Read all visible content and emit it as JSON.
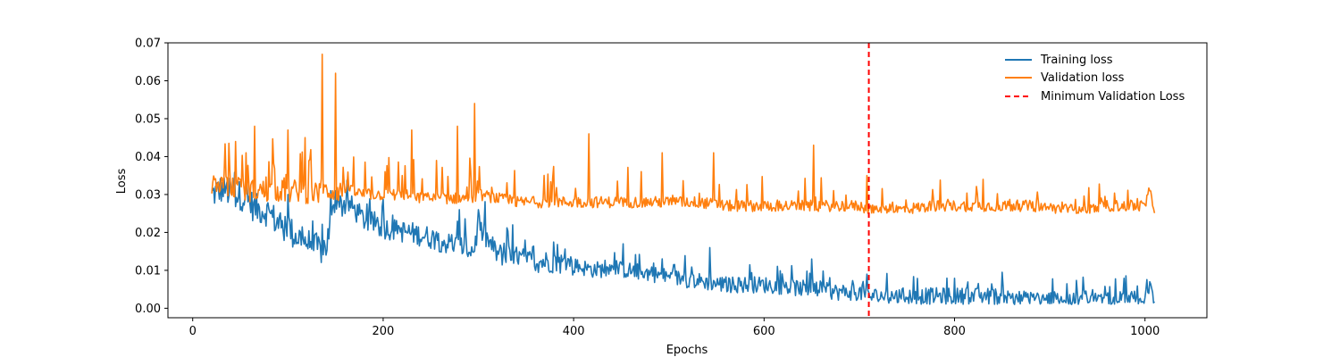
{
  "chart_data": {
    "type": "line",
    "title": "",
    "xlabel": "Epochs",
    "ylabel": "Loss",
    "xlim": [
      -26,
      1065
    ],
    "ylim": [
      -0.0025,
      0.07
    ],
    "xticks": [
      0,
      200,
      400,
      600,
      800,
      1000
    ],
    "yticks": [
      0.0,
      0.01,
      0.02,
      0.03,
      0.04,
      0.05,
      0.06,
      0.07
    ],
    "xtick_labels": [
      "0",
      "200",
      "400",
      "600",
      "800",
      "1000"
    ],
    "ytick_labels": [
      "0.00",
      "0.01",
      "0.02",
      "0.03",
      "0.04",
      "0.05",
      "0.06",
      "0.07"
    ],
    "grid": false,
    "legend_position": "top-right",
    "series": [
      {
        "name": "Training loss",
        "color": "#1f77b4",
        "x": [
          20,
          30,
          40,
          55,
          65,
          80,
          95,
          100,
          105,
          115,
          125,
          135,
          140,
          150,
          165,
          180,
          200,
          220,
          240,
          255,
          265,
          280,
          295,
          300,
          320,
          340,
          360,
          380,
          400,
          420,
          450,
          480,
          500,
          530,
          560,
          600,
          640,
          680,
          700,
          710,
          740,
          780,
          800,
          840,
          880,
          920,
          940,
          960,
          980,
          1000,
          1005,
          1010
        ],
        "values": [
          0.0295,
          0.031,
          0.03,
          0.029,
          0.026,
          0.025,
          0.02,
          0.022,
          0.019,
          0.018,
          0.016,
          0.015,
          0.016,
          0.027,
          0.027,
          0.023,
          0.021,
          0.02,
          0.019,
          0.018,
          0.017,
          0.016,
          0.015,
          0.021,
          0.014,
          0.013,
          0.012,
          0.012,
          0.011,
          0.01,
          0.01,
          0.009,
          0.008,
          0.007,
          0.006,
          0.006,
          0.005,
          0.004,
          0.004,
          0.003,
          0.003,
          0.003,
          0.003,
          0.003,
          0.002,
          0.002,
          0.002,
          0.002,
          0.002,
          0.002,
          0.006,
          0.001
        ],
        "peaks": [
          [
            35,
            0.032
          ],
          [
            100,
            0.03
          ],
          [
            145,
            0.031
          ],
          [
            150,
            0.031
          ],
          [
            280,
            0.026
          ],
          [
            300,
            0.026
          ],
          [
            452,
            0.017
          ],
          [
            543,
            0.016
          ],
          [
            650,
            0.013
          ],
          [
            708,
            0.009
          ],
          [
            1005,
            0.007
          ]
        ]
      },
      {
        "name": "Validation loss",
        "color": "#ff7f0e",
        "x": [
          20,
          30,
          40,
          55,
          65,
          80,
          95,
          100,
          105,
          115,
          125,
          135,
          140,
          150,
          165,
          180,
          200,
          220,
          240,
          255,
          265,
          280,
          295,
          300,
          320,
          340,
          360,
          380,
          400,
          420,
          450,
          480,
          500,
          530,
          560,
          600,
          640,
          680,
          700,
          710,
          740,
          780,
          800,
          840,
          880,
          920,
          940,
          960,
          980,
          1000,
          1005,
          1010
        ],
        "values": [
          0.032,
          0.033,
          0.032,
          0.031,
          0.031,
          0.031,
          0.031,
          0.03,
          0.031,
          0.031,
          0.03,
          0.03,
          0.031,
          0.031,
          0.031,
          0.03,
          0.03,
          0.03,
          0.029,
          0.029,
          0.029,
          0.029,
          0.029,
          0.03,
          0.029,
          0.028,
          0.028,
          0.028,
          0.028,
          0.028,
          0.028,
          0.028,
          0.028,
          0.028,
          0.027,
          0.027,
          0.027,
          0.027,
          0.027,
          0.026,
          0.026,
          0.027,
          0.027,
          0.027,
          0.027,
          0.026,
          0.026,
          0.027,
          0.027,
          0.027,
          0.031,
          0.026
        ],
        "peaks": [
          [
            65,
            0.048
          ],
          [
            100,
            0.047
          ],
          [
            118,
            0.045
          ],
          [
            136,
            0.067
          ],
          [
            150,
            0.062
          ],
          [
            230,
            0.047
          ],
          [
            278,
            0.048
          ],
          [
            296,
            0.054
          ],
          [
            416,
            0.046
          ],
          [
            493,
            0.041
          ],
          [
            547,
            0.041
          ],
          [
            652,
            0.043
          ],
          [
            708,
            0.035
          ],
          [
            830,
            0.034
          ],
          [
            1005,
            0.031
          ]
        ]
      }
    ],
    "vertical_line": {
      "name": "Minimum Validation Loss",
      "x": 710,
      "color": "#ff0000",
      "style": "dashed"
    }
  }
}
